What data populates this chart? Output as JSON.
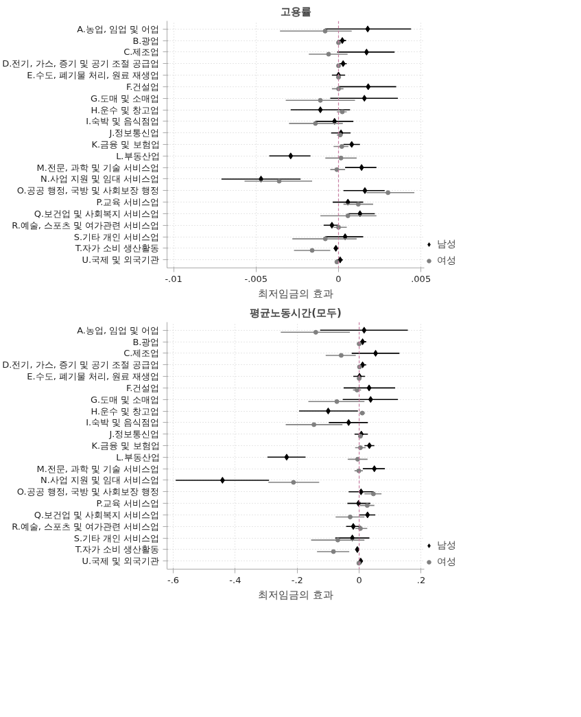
{
  "chart_data": [
    {
      "type": "scatter",
      "orientation": "horizontal",
      "title": "고용률",
      "xlabel": "최저임금의 효과",
      "categories": [
        "A.농업, 임업 및 어업",
        "B.광업",
        "C.제조업",
        "D.전기, 가스, 증기 및 공기 조절 공급업",
        "E.수도, 폐기물 처리, 원료 재생업",
        "F.건설업",
        "G.도매 및 소매업",
        "H.운수 및 창고업",
        "I.숙박 및 음식점업",
        "J.정보통신업",
        "K.금융 및 보험업",
        "L.부동산업",
        "M.전문, 과학 및 기술 서비스업",
        "N.사업 지원 및 임대 서비스업",
        "O.공공 행정, 국방 및 사회보장 행정",
        "P.교육 서비스업",
        "Q.보건업 및 사회복지 서비스업",
        "R.예술, 스포츠 및 여가관련 서비스업",
        "S.기타 개인 서비스업",
        "T.자가 소비 생산활동",
        "U.국제 및 외국기관"
      ],
      "series": [
        {
          "name": "남성",
          "color": "#000000",
          "marker": "diamond",
          "values": [
            0.00177,
            0.00023,
            0.0017,
            0.00028,
            0,
            0.0018,
            0.00157,
            -0.0011,
            -0.00024,
            0.00015,
            0.0008,
            -0.0029,
            0.0014,
            -0.0047,
            0.0016,
            0.00057,
            0.0013,
            -0.0004,
            0.0004,
            -0.00016,
            0.0001
          ],
          "errors": [
            [
              -0.00082,
              0.0044
            ],
            [
              -5e-05,
              0.00046
            ],
            [
              -8e-05,
              0.0034
            ],
            [
              5e-05,
              0.0005
            ],
            [
              -0.0004,
              0.0004
            ],
            [
              0,
              0.0035
            ],
            [
              -0.0005,
              0.0036
            ],
            [
              -0.0029,
              0.0007
            ],
            [
              -0.0014,
              0.0009
            ],
            [
              -0.00045,
              0.00073
            ],
            [
              0.0003,
              0.0013
            ],
            [
              -0.0042,
              -0.0017
            ],
            [
              0.0004,
              0.0023
            ],
            [
              -0.0071,
              -0.0023
            ],
            [
              0.0003,
              0.0028
            ],
            [
              -0.00035,
              0.0015
            ],
            [
              0.0006,
              0.0022
            ],
            [
              -0.0009,
              3e-05
            ],
            [
              -0.0008,
              0.0015
            ],
            [
              -0.00028,
              -5e-05
            ],
            [
              -0.00012,
              0.00026
            ]
          ]
        },
        {
          "name": "여성",
          "color": "#808080",
          "marker": "circle",
          "values": [
            -0.00081,
            0,
            -0.0006,
            0,
            0,
            0,
            -0.0011,
            0.00023,
            -0.0014,
            0.0001,
            0.0002,
            0.00015,
            -0.0001,
            -0.0036,
            0.003,
            0.0012,
            0.00057,
            0,
            -0.0008,
            -0.0016,
            -0.0001
          ],
          "errors": [
            [
              -0.00355,
              0.0008
            ],
            [
              -8e-05,
              0.0001
            ],
            [
              -0.0018,
              0.00055
            ],
            [
              -0.0001,
              0.0001
            ],
            [
              -0.00015,
              0.00015
            ],
            [
              -0.0004,
              0.0003
            ],
            [
              -0.0032,
              0.001
            ],
            [
              -0.0001,
              0.0005
            ],
            [
              -0.003,
              0.00026
            ],
            [
              -0.0001,
              0.00026
            ],
            [
              -0.0003,
              0.0006
            ],
            [
              -0.0008,
              0.0011
            ],
            [
              -0.0005,
              0.0004
            ],
            [
              -0.0057,
              -0.0016
            ],
            [
              0.0017,
              0.0046
            ],
            [
              0.0003,
              0.0021
            ],
            [
              -0.0011,
              0.0023
            ],
            [
              -0.0003,
              0.0005
            ],
            [
              -0.0028,
              0.0011
            ],
            [
              -0.0027,
              -0.0005
            ],
            [
              -0.00015,
              3e-05
            ]
          ]
        }
      ],
      "xlim": [
        -0.0104,
        0.0052
      ],
      "xticks": [
        {
          "value": -0.01,
          "label": "-.01"
        },
        {
          "value": -0.005,
          "label": "-.005"
        },
        0,
        {
          "value": 0.005,
          "label": ".005"
        }
      ],
      "ref_lines": [
        {
          "axis": "x",
          "value": 0,
          "color": "#c87aa0",
          "line_style": "dashed"
        }
      ],
      "grid": true,
      "legend": "right"
    },
    {
      "type": "scatter",
      "orientation": "horizontal",
      "title": "평균노동시간(모두)",
      "xlabel": "최저임금의 효과",
      "categories": [
        "A.농업, 임업 및 어업",
        "B.광업",
        "C.제조업",
        "D.전기, 가스, 증기 및 공기 조절 공급업",
        "E.수도, 폐기물 처리, 원료 재생업",
        "F.건설업",
        "G.도매 및 소매업",
        "H.운수 및 창고업",
        "I.숙박 및 음식점업",
        "J.정보통신업",
        "K.금융 및 보험업",
        "L.부동산업",
        "M.전문, 과학 및 기술 서비스업",
        "N.사업 지원 및 임대 서비스업",
        "O.공공 행정, 국방 및 사회보장 행정",
        "P.교육 서비스업",
        "Q.보건업 및 사회복지 서비스업",
        "R.예술, 스포츠 및 여가관련 서비스업",
        "S.기타 개인 서비스업",
        "T.자가 소비 생산활동",
        "U.국제 및 외국기관"
      ],
      "series": [
        {
          "name": "남성",
          "color": "#000000",
          "marker": "diamond",
          "values": [
            0.016,
            0.011,
            0.053,
            0.011,
            0.001,
            0.032,
            0.037,
            -0.1,
            -0.034,
            0.007,
            0.033,
            -0.234,
            0.049,
            -0.441,
            0.006,
            -0.002,
            0.027,
            -0.019,
            -0.022,
            -0.006,
            0.005
          ],
          "errors": [
            [
              -0.126,
              0.157
            ],
            [
              0.003,
              0.023
            ],
            [
              -0.024,
              0.13
            ],
            [
              0.003,
              0.023
            ],
            [
              -0.019,
              0.019
            ],
            [
              -0.05,
              0.116
            ],
            [
              -0.053,
              0.125
            ],
            [
              -0.194,
              -0.004
            ],
            [
              -0.098,
              0.028
            ],
            [
              -0.015,
              0.028
            ],
            [
              0.017,
              0.049
            ],
            [
              -0.296,
              -0.173
            ],
            [
              0.012,
              0.083
            ],
            [
              -0.592,
              -0.291
            ],
            [
              -0.034,
              0.047
            ],
            [
              -0.038,
              0.036
            ],
            [
              0.001,
              0.052
            ],
            [
              -0.042,
              0.006
            ],
            [
              -0.077,
              0.033
            ],
            [
              -0.011,
              -0.002
            ],
            [
              -0.001,
              0.011
            ]
          ]
        },
        {
          "name": "여성",
          "color": "#808080",
          "marker": "circle",
          "values": [
            -0.14,
            0,
            -0.058,
            0.001,
            0,
            -0.007,
            -0.072,
            0.01,
            -0.146,
            0.004,
            0.004,
            -0.005,
            -0.001,
            -0.212,
            0.046,
            0.026,
            -0.029,
            0.004,
            -0.069,
            -0.083,
            -0.001
          ],
          "errors": [
            [
              -0.253,
              -0.03
            ],
            [
              -0.005,
              0.005
            ],
            [
              -0.108,
              -0.011
            ],
            [
              -0.004,
              0.006
            ],
            [
              -0.006,
              0.007
            ],
            [
              -0.02,
              0.006
            ],
            [
              -0.164,
              0.017
            ],
            [
              0.001,
              0.019
            ],
            [
              -0.237,
              -0.054
            ],
            [
              -0.002,
              0.01
            ],
            [
              -0.013,
              0.021
            ],
            [
              -0.037,
              0.027
            ],
            [
              -0.015,
              0.012
            ],
            [
              -0.293,
              -0.129
            ],
            [
              0.017,
              0.072
            ],
            [
              0.003,
              0.049
            ],
            [
              -0.076,
              0.017
            ],
            [
              -0.013,
              0.026
            ],
            [
              -0.155,
              0.017
            ],
            [
              -0.136,
              -0.032
            ],
            [
              -0.005,
              0.003
            ]
          ]
        }
      ],
      "xlim": [
        -0.62,
        0.21
      ],
      "xticks": [
        {
          "value": -0.6,
          "label": "-.6"
        },
        {
          "value": -0.4,
          "label": "-.4"
        },
        {
          "value": -0.2,
          "label": "-.2"
        },
        0,
        {
          "value": 0.2,
          "label": ".2"
        }
      ],
      "ref_lines": [
        {
          "axis": "x",
          "value": 0,
          "color": "#c87aa0",
          "line_style": "dashed"
        }
      ],
      "grid": true,
      "legend": "right"
    }
  ]
}
